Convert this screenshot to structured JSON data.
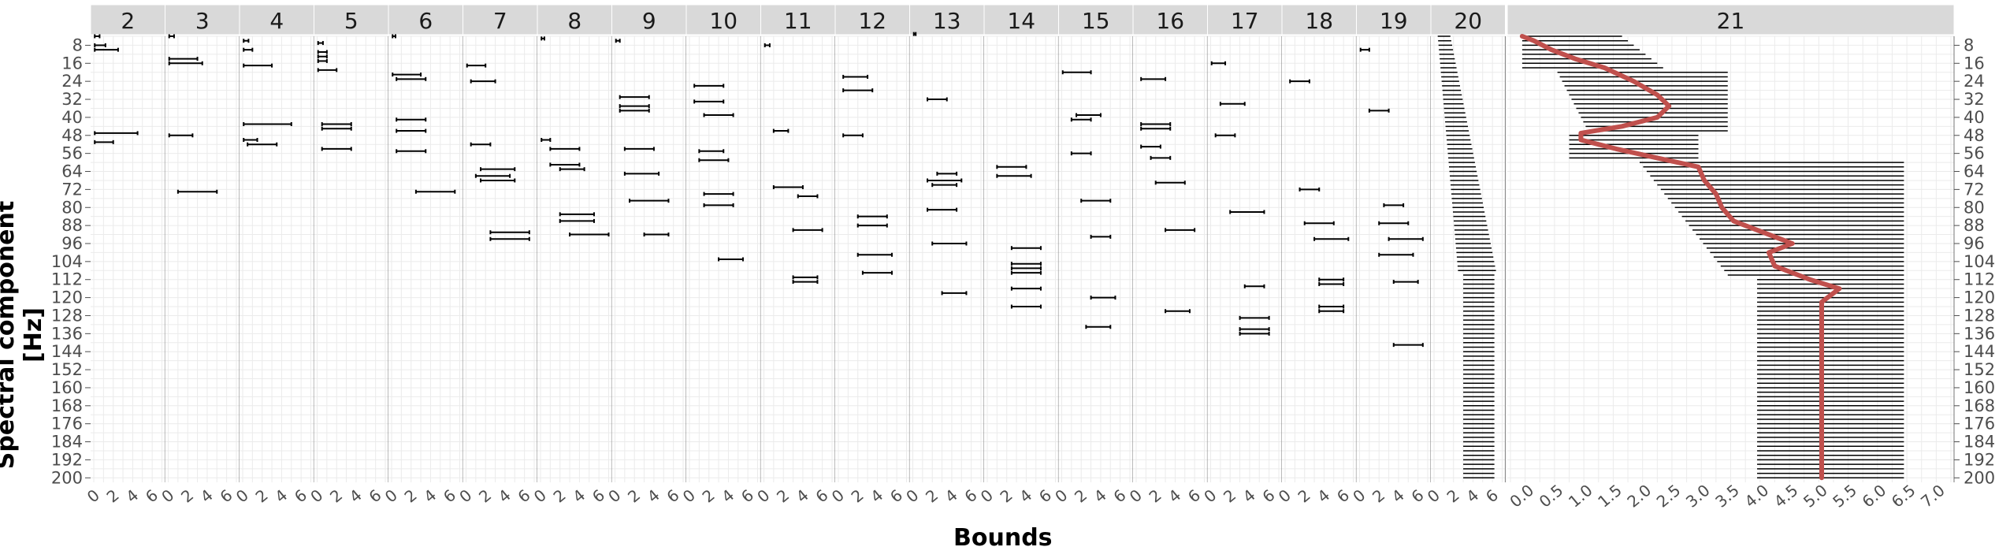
{
  "chart_data": {
    "type": "errorbar",
    "xlabel": "Bounds",
    "ylabel": "Spectral component [Hz]",
    "y_ticks": [
      8,
      16,
      24,
      32,
      40,
      48,
      56,
      64,
      72,
      80,
      88,
      96,
      104,
      112,
      120,
      128,
      136,
      144,
      152,
      160,
      168,
      176,
      184,
      192,
      200
    ],
    "y_range": [
      4,
      202
    ],
    "grid": true,
    "panels": [
      {
        "label": "2",
        "xlim": [
          0,
          7
        ],
        "x_ticks": [
          0,
          2,
          4,
          6
        ],
        "intervals": [
          {
            "y": 4,
            "lo": 0.1,
            "hi": 0.6
          },
          {
            "y": 8,
            "lo": 0.1,
            "hi": 1.2
          },
          {
            "y": 10,
            "lo": 0.1,
            "hi": 2.5
          },
          {
            "y": 47,
            "lo": 0.1,
            "hi": 4.5
          },
          {
            "y": 51,
            "lo": 0.1,
            "hi": 2.0
          }
        ]
      },
      {
        "label": "3",
        "xlim": [
          0,
          7
        ],
        "x_ticks": [
          0,
          2,
          4,
          6
        ],
        "intervals": [
          {
            "y": 4,
            "lo": 0.1,
            "hi": 0.6
          },
          {
            "y": 14,
            "lo": 0.1,
            "hi": 3.0
          },
          {
            "y": 16,
            "lo": 0.1,
            "hi": 3.5
          },
          {
            "y": 48,
            "lo": 0.1,
            "hi": 2.5
          },
          {
            "y": 73,
            "lo": 1.0,
            "hi": 5.0
          }
        ]
      },
      {
        "label": "4",
        "xlim": [
          0,
          7
        ],
        "x_ticks": [
          0,
          2,
          4,
          6
        ],
        "intervals": [
          {
            "y": 6,
            "lo": 0.1,
            "hi": 0.6
          },
          {
            "y": 10,
            "lo": 0.1,
            "hi": 1.0
          },
          {
            "y": 17,
            "lo": 0.1,
            "hi": 3.0
          },
          {
            "y": 43,
            "lo": 0.1,
            "hi": 5.0
          },
          {
            "y": 50,
            "lo": 0.1,
            "hi": 1.5
          },
          {
            "y": 52,
            "lo": 0.5,
            "hi": 3.5
          }
        ]
      },
      {
        "label": "5",
        "xlim": [
          0,
          7
        ],
        "x_ticks": [
          0,
          2,
          4,
          6
        ],
        "intervals": [
          {
            "y": 7,
            "lo": 0.1,
            "hi": 0.6
          },
          {
            "y": 11,
            "lo": 0.1,
            "hi": 1.0
          },
          {
            "y": 13,
            "lo": 0.1,
            "hi": 1.0
          },
          {
            "y": 15,
            "lo": 0.1,
            "hi": 1.0
          },
          {
            "y": 19,
            "lo": 0.1,
            "hi": 2.0
          },
          {
            "y": 43,
            "lo": 0.5,
            "hi": 3.5
          },
          {
            "y": 45,
            "lo": 0.5,
            "hi": 3.5
          },
          {
            "y": 54,
            "lo": 0.5,
            "hi": 3.5
          }
        ]
      },
      {
        "label": "6",
        "xlim": [
          0,
          7
        ],
        "x_ticks": [
          0,
          2,
          4,
          6
        ],
        "intervals": [
          {
            "y": 4,
            "lo": 0.1,
            "hi": 0.4
          },
          {
            "y": 21,
            "lo": 0.1,
            "hi": 3.0
          },
          {
            "y": 23,
            "lo": 0.5,
            "hi": 3.5
          },
          {
            "y": 41,
            "lo": 0.5,
            "hi": 3.5
          },
          {
            "y": 46,
            "lo": 0.5,
            "hi": 3.5
          },
          {
            "y": 55,
            "lo": 0.5,
            "hi": 3.5
          },
          {
            "y": 73,
            "lo": 2.5,
            "hi": 6.5
          }
        ]
      },
      {
        "label": "7",
        "xlim": [
          0,
          7
        ],
        "x_ticks": [
          0,
          2,
          4,
          6
        ],
        "intervals": [
          {
            "y": 17,
            "lo": 0.1,
            "hi": 2.0
          },
          {
            "y": 24,
            "lo": 0.5,
            "hi": 3.0
          },
          {
            "y": 52,
            "lo": 0.5,
            "hi": 2.5
          },
          {
            "y": 63,
            "lo": 1.5,
            "hi": 5.0
          },
          {
            "y": 66,
            "lo": 1.0,
            "hi": 4.5
          },
          {
            "y": 68,
            "lo": 1.5,
            "hi": 5.0
          },
          {
            "y": 91,
            "lo": 2.5,
            "hi": 6.5
          },
          {
            "y": 94,
            "lo": 2.5,
            "hi": 6.5
          }
        ]
      },
      {
        "label": "8",
        "xlim": [
          0,
          7
        ],
        "x_ticks": [
          0,
          2,
          4,
          6
        ],
        "intervals": [
          {
            "y": 5,
            "lo": 0.1,
            "hi": 0.4
          },
          {
            "y": 50,
            "lo": 0.1,
            "hi": 1.0
          },
          {
            "y": 54,
            "lo": 1.0,
            "hi": 4.0
          },
          {
            "y": 61,
            "lo": 1.0,
            "hi": 4.0
          },
          {
            "y": 63,
            "lo": 2.0,
            "hi": 4.5
          },
          {
            "y": 83,
            "lo": 2.0,
            "hi": 5.5
          },
          {
            "y": 86,
            "lo": 2.0,
            "hi": 5.5
          },
          {
            "y": 92,
            "lo": 3.0,
            "hi": 7.0
          }
        ]
      },
      {
        "label": "9",
        "xlim": [
          0,
          7
        ],
        "x_ticks": [
          0,
          2,
          4,
          6
        ],
        "intervals": [
          {
            "y": 6,
            "lo": 0.1,
            "hi": 0.5
          },
          {
            "y": 31,
            "lo": 0.5,
            "hi": 3.5
          },
          {
            "y": 35,
            "lo": 0.5,
            "hi": 3.5
          },
          {
            "y": 37,
            "lo": 0.5,
            "hi": 3.5
          },
          {
            "y": 54,
            "lo": 1.0,
            "hi": 4.0
          },
          {
            "y": 65,
            "lo": 1.0,
            "hi": 4.5
          },
          {
            "y": 77,
            "lo": 1.5,
            "hi": 5.5
          },
          {
            "y": 92,
            "lo": 3.0,
            "hi": 5.5
          }
        ]
      },
      {
        "label": "10",
        "xlim": [
          0,
          7
        ],
        "x_ticks": [
          0,
          2,
          4,
          6
        ],
        "intervals": [
          {
            "y": 26,
            "lo": 0.5,
            "hi": 3.5
          },
          {
            "y": 33,
            "lo": 0.5,
            "hi": 3.5
          },
          {
            "y": 39,
            "lo": 1.5,
            "hi": 4.5
          },
          {
            "y": 55,
            "lo": 1.0,
            "hi": 3.5
          },
          {
            "y": 59,
            "lo": 1.0,
            "hi": 4.0
          },
          {
            "y": 74,
            "lo": 1.5,
            "hi": 4.5
          },
          {
            "y": 79,
            "lo": 1.5,
            "hi": 4.5
          },
          {
            "y": 103,
            "lo": 3.0,
            "hi": 5.5
          }
        ]
      },
      {
        "label": "11",
        "xlim": [
          0,
          7
        ],
        "x_ticks": [
          0,
          2,
          4,
          6
        ],
        "intervals": [
          {
            "y": 8,
            "lo": 0.1,
            "hi": 0.6
          },
          {
            "y": 46,
            "lo": 1.0,
            "hi": 2.5
          },
          {
            "y": 71,
            "lo": 1.0,
            "hi": 4.0
          },
          {
            "y": 75,
            "lo": 3.5,
            "hi": 5.5
          },
          {
            "y": 90,
            "lo": 3.0,
            "hi": 6.0
          },
          {
            "y": 111,
            "lo": 3.0,
            "hi": 5.5
          },
          {
            "y": 113,
            "lo": 3.0,
            "hi": 5.5
          }
        ]
      },
      {
        "label": "12",
        "xlim": [
          0,
          7
        ],
        "x_ticks": [
          0,
          2,
          4,
          6
        ],
        "intervals": [
          {
            "y": 22,
            "lo": 0.5,
            "hi": 3.0
          },
          {
            "y": 28,
            "lo": 0.5,
            "hi": 3.5
          },
          {
            "y": 48,
            "lo": 0.5,
            "hi": 2.5
          },
          {
            "y": 84,
            "lo": 2.0,
            "hi": 5.0
          },
          {
            "y": 88,
            "lo": 2.0,
            "hi": 5.0
          },
          {
            "y": 101,
            "lo": 2.0,
            "hi": 5.5
          },
          {
            "y": 109,
            "lo": 2.5,
            "hi": 5.5
          }
        ]
      },
      {
        "label": "13",
        "xlim": [
          0,
          7
        ],
        "x_ticks": [
          0,
          2,
          4,
          6
        ],
        "intervals": [
          {
            "y": 3,
            "lo": 0.1,
            "hi": 0.3
          },
          {
            "y": 32,
            "lo": 1.5,
            "hi": 3.5
          },
          {
            "y": 65,
            "lo": 2.5,
            "hi": 4.5
          },
          {
            "y": 68,
            "lo": 1.5,
            "hi": 5.0
          },
          {
            "y": 70,
            "lo": 2.0,
            "hi": 4.5
          },
          {
            "y": 81,
            "lo": 1.5,
            "hi": 4.5
          },
          {
            "y": 96,
            "lo": 2.0,
            "hi": 5.5
          },
          {
            "y": 118,
            "lo": 3.0,
            "hi": 5.5
          }
        ]
      },
      {
        "label": "14",
        "xlim": [
          0,
          7
        ],
        "x_ticks": [
          0,
          2,
          4,
          6
        ],
        "intervals": [
          {
            "y": 62,
            "lo": 1.0,
            "hi": 4.0
          },
          {
            "y": 66,
            "lo": 1.0,
            "hi": 4.5
          },
          {
            "y": 98,
            "lo": 2.5,
            "hi": 5.5
          },
          {
            "y": 105,
            "lo": 2.5,
            "hi": 5.5
          },
          {
            "y": 107,
            "lo": 2.5,
            "hi": 5.5
          },
          {
            "y": 109,
            "lo": 2.5,
            "hi": 5.5
          },
          {
            "y": 116,
            "lo": 2.5,
            "hi": 5.5
          },
          {
            "y": 124,
            "lo": 2.5,
            "hi": 5.5
          }
        ]
      },
      {
        "label": "15",
        "xlim": [
          0,
          7
        ],
        "x_ticks": [
          0,
          2,
          4,
          6
        ],
        "intervals": [
          {
            "y": 20,
            "lo": 0.1,
            "hi": 3.0
          },
          {
            "y": 39,
            "lo": 1.5,
            "hi": 4.0
          },
          {
            "y": 41,
            "lo": 1.0,
            "hi": 3.0
          },
          {
            "y": 56,
            "lo": 1.0,
            "hi": 3.0
          },
          {
            "y": 77,
            "lo": 2.0,
            "hi": 5.0
          },
          {
            "y": 93,
            "lo": 3.0,
            "hi": 5.0
          },
          {
            "y": 120,
            "lo": 3.0,
            "hi": 5.5
          },
          {
            "y": 133,
            "lo": 2.5,
            "hi": 5.0
          }
        ]
      },
      {
        "label": "16",
        "xlim": [
          0,
          7
        ],
        "x_ticks": [
          0,
          2,
          4,
          6
        ],
        "intervals": [
          {
            "y": 23,
            "lo": 0.5,
            "hi": 3.0
          },
          {
            "y": 43,
            "lo": 0.5,
            "hi": 3.5
          },
          {
            "y": 45,
            "lo": 0.5,
            "hi": 3.5
          },
          {
            "y": 53,
            "lo": 0.5,
            "hi": 2.5
          },
          {
            "y": 58,
            "lo": 1.5,
            "hi": 3.5
          },
          {
            "y": 69,
            "lo": 2.0,
            "hi": 5.0
          },
          {
            "y": 90,
            "lo": 3.0,
            "hi": 6.0
          },
          {
            "y": 126,
            "lo": 3.0,
            "hi": 5.5
          }
        ]
      },
      {
        "label": "17",
        "xlim": [
          0,
          7
        ],
        "x_ticks": [
          0,
          2,
          4,
          6
        ],
        "intervals": [
          {
            "y": 16,
            "lo": 0.1,
            "hi": 1.5
          },
          {
            "y": 34,
            "lo": 1.0,
            "hi": 3.5
          },
          {
            "y": 48,
            "lo": 0.5,
            "hi": 2.5
          },
          {
            "y": 82,
            "lo": 2.0,
            "hi": 5.5
          },
          {
            "y": 115,
            "lo": 3.5,
            "hi": 5.5
          },
          {
            "y": 129,
            "lo": 3.0,
            "hi": 6.0
          },
          {
            "y": 134,
            "lo": 3.0,
            "hi": 6.0
          },
          {
            "y": 136,
            "lo": 3.0,
            "hi": 6.0
          }
        ]
      },
      {
        "label": "18",
        "xlim": [
          0,
          7
        ],
        "x_ticks": [
          0,
          2,
          4,
          6
        ],
        "intervals": [
          {
            "y": 24,
            "lo": 0.5,
            "hi": 2.5
          },
          {
            "y": 72,
            "lo": 1.5,
            "hi": 3.5
          },
          {
            "y": 87,
            "lo": 2.0,
            "hi": 5.0
          },
          {
            "y": 94,
            "lo": 3.0,
            "hi": 6.5
          },
          {
            "y": 112,
            "lo": 3.5,
            "hi": 6.0
          },
          {
            "y": 114,
            "lo": 3.5,
            "hi": 6.0
          },
          {
            "y": 124,
            "lo": 3.5,
            "hi": 6.0
          },
          {
            "y": 126,
            "lo": 3.5,
            "hi": 6.0
          }
        ]
      },
      {
        "label": "19",
        "xlim": [
          0,
          7
        ],
        "x_ticks": [
          0,
          2,
          4,
          6
        ],
        "intervals": [
          {
            "y": 10,
            "lo": 0.1,
            "hi": 1.0
          },
          {
            "y": 37,
            "lo": 1.0,
            "hi": 3.0
          },
          {
            "y": 79,
            "lo": 2.5,
            "hi": 4.5
          },
          {
            "y": 87,
            "lo": 2.0,
            "hi": 5.0
          },
          {
            "y": 94,
            "lo": 3.0,
            "hi": 6.5
          },
          {
            "y": 101,
            "lo": 2.0,
            "hi": 5.5
          },
          {
            "y": 113,
            "lo": 3.5,
            "hi": 6.0
          },
          {
            "y": 141,
            "lo": 3.5,
            "hi": 6.5
          }
        ]
      },
      {
        "label": "20",
        "xlim": [
          0,
          7
        ],
        "x_ticks": [
          0,
          2,
          4,
          6
        ],
        "intervals": []
      },
      {
        "label": "21",
        "xlim": [
          -0.2,
          7.3
        ],
        "x_ticks": [
          0.0,
          0.5,
          1.0,
          1.5,
          2.0,
          2.5,
          3.0,
          3.5,
          4.0,
          4.5,
          5.0,
          5.5,
          6.0,
          6.5,
          7.0
        ],
        "intervals": []
      }
    ],
    "curve21": {
      "color": "#c0504d",
      "points": [
        [
          0.0,
          4
        ],
        [
          0.2,
          6
        ],
        [
          0.5,
          10
        ],
        [
          0.9,
          14
        ],
        [
          1.4,
          18
        ],
        [
          1.9,
          24
        ],
        [
          2.3,
          30
        ],
        [
          2.5,
          35
        ],
        [
          2.3,
          40
        ],
        [
          1.7,
          44
        ],
        [
          1.0,
          47
        ],
        [
          1.0,
          50
        ],
        [
          1.6,
          54
        ],
        [
          2.3,
          58
        ],
        [
          3.0,
          62
        ],
        [
          3.1,
          68
        ],
        [
          3.3,
          74
        ],
        [
          3.4,
          80
        ],
        [
          3.6,
          86
        ],
        [
          4.2,
          92
        ],
        [
          4.6,
          96
        ],
        [
          4.2,
          100
        ],
        [
          4.3,
          106
        ],
        [
          4.9,
          112
        ],
        [
          5.4,
          116
        ],
        [
          5.1,
          122
        ],
        [
          5.1,
          200
        ]
      ]
    }
  }
}
